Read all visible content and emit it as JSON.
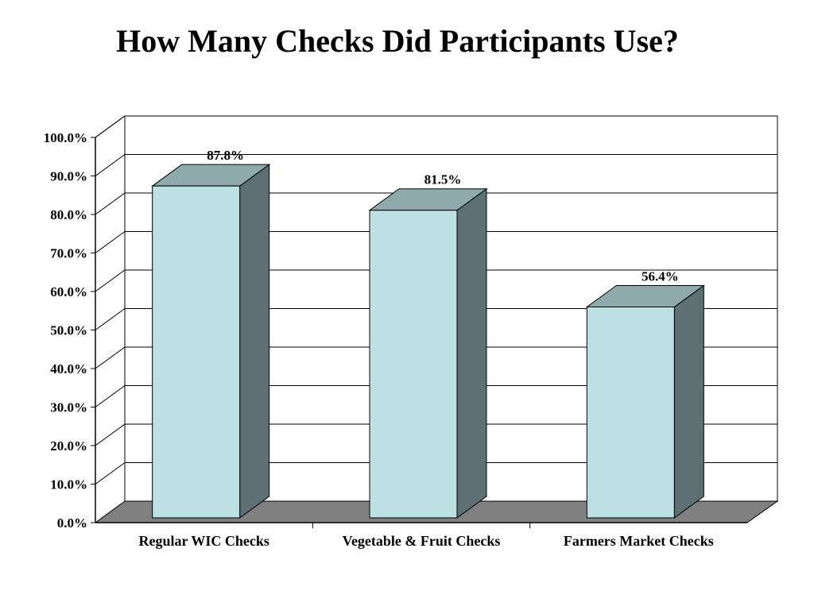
{
  "title": "How Many Checks Did Participants Use?",
  "colors": {
    "bar_front": "#bce0e4",
    "bar_top": "#8faaad",
    "bar_side": "#5e7073",
    "floor": "#808080",
    "gridline": "#000000",
    "background": "#ffffff"
  },
  "chart_data": {
    "type": "bar",
    "style": "3d",
    "categories": [
      "Regular WIC Checks",
      "Vegetable & Fruit Checks",
      "Farmers Market Checks"
    ],
    "values": [
      87.8,
      81.5,
      56.4
    ],
    "data_labels": [
      "87.8%",
      "81.5%",
      "56.4%"
    ],
    "y_ticks": [
      "0.0%",
      "10.0%",
      "20.0%",
      "30.0%",
      "40.0%",
      "50.0%",
      "60.0%",
      "70.0%",
      "80.0%",
      "90.0%",
      "100.0%"
    ],
    "ylim": [
      0,
      100
    ],
    "grid": true,
    "legend": "none",
    "xlabel": "",
    "ylabel": ""
  }
}
